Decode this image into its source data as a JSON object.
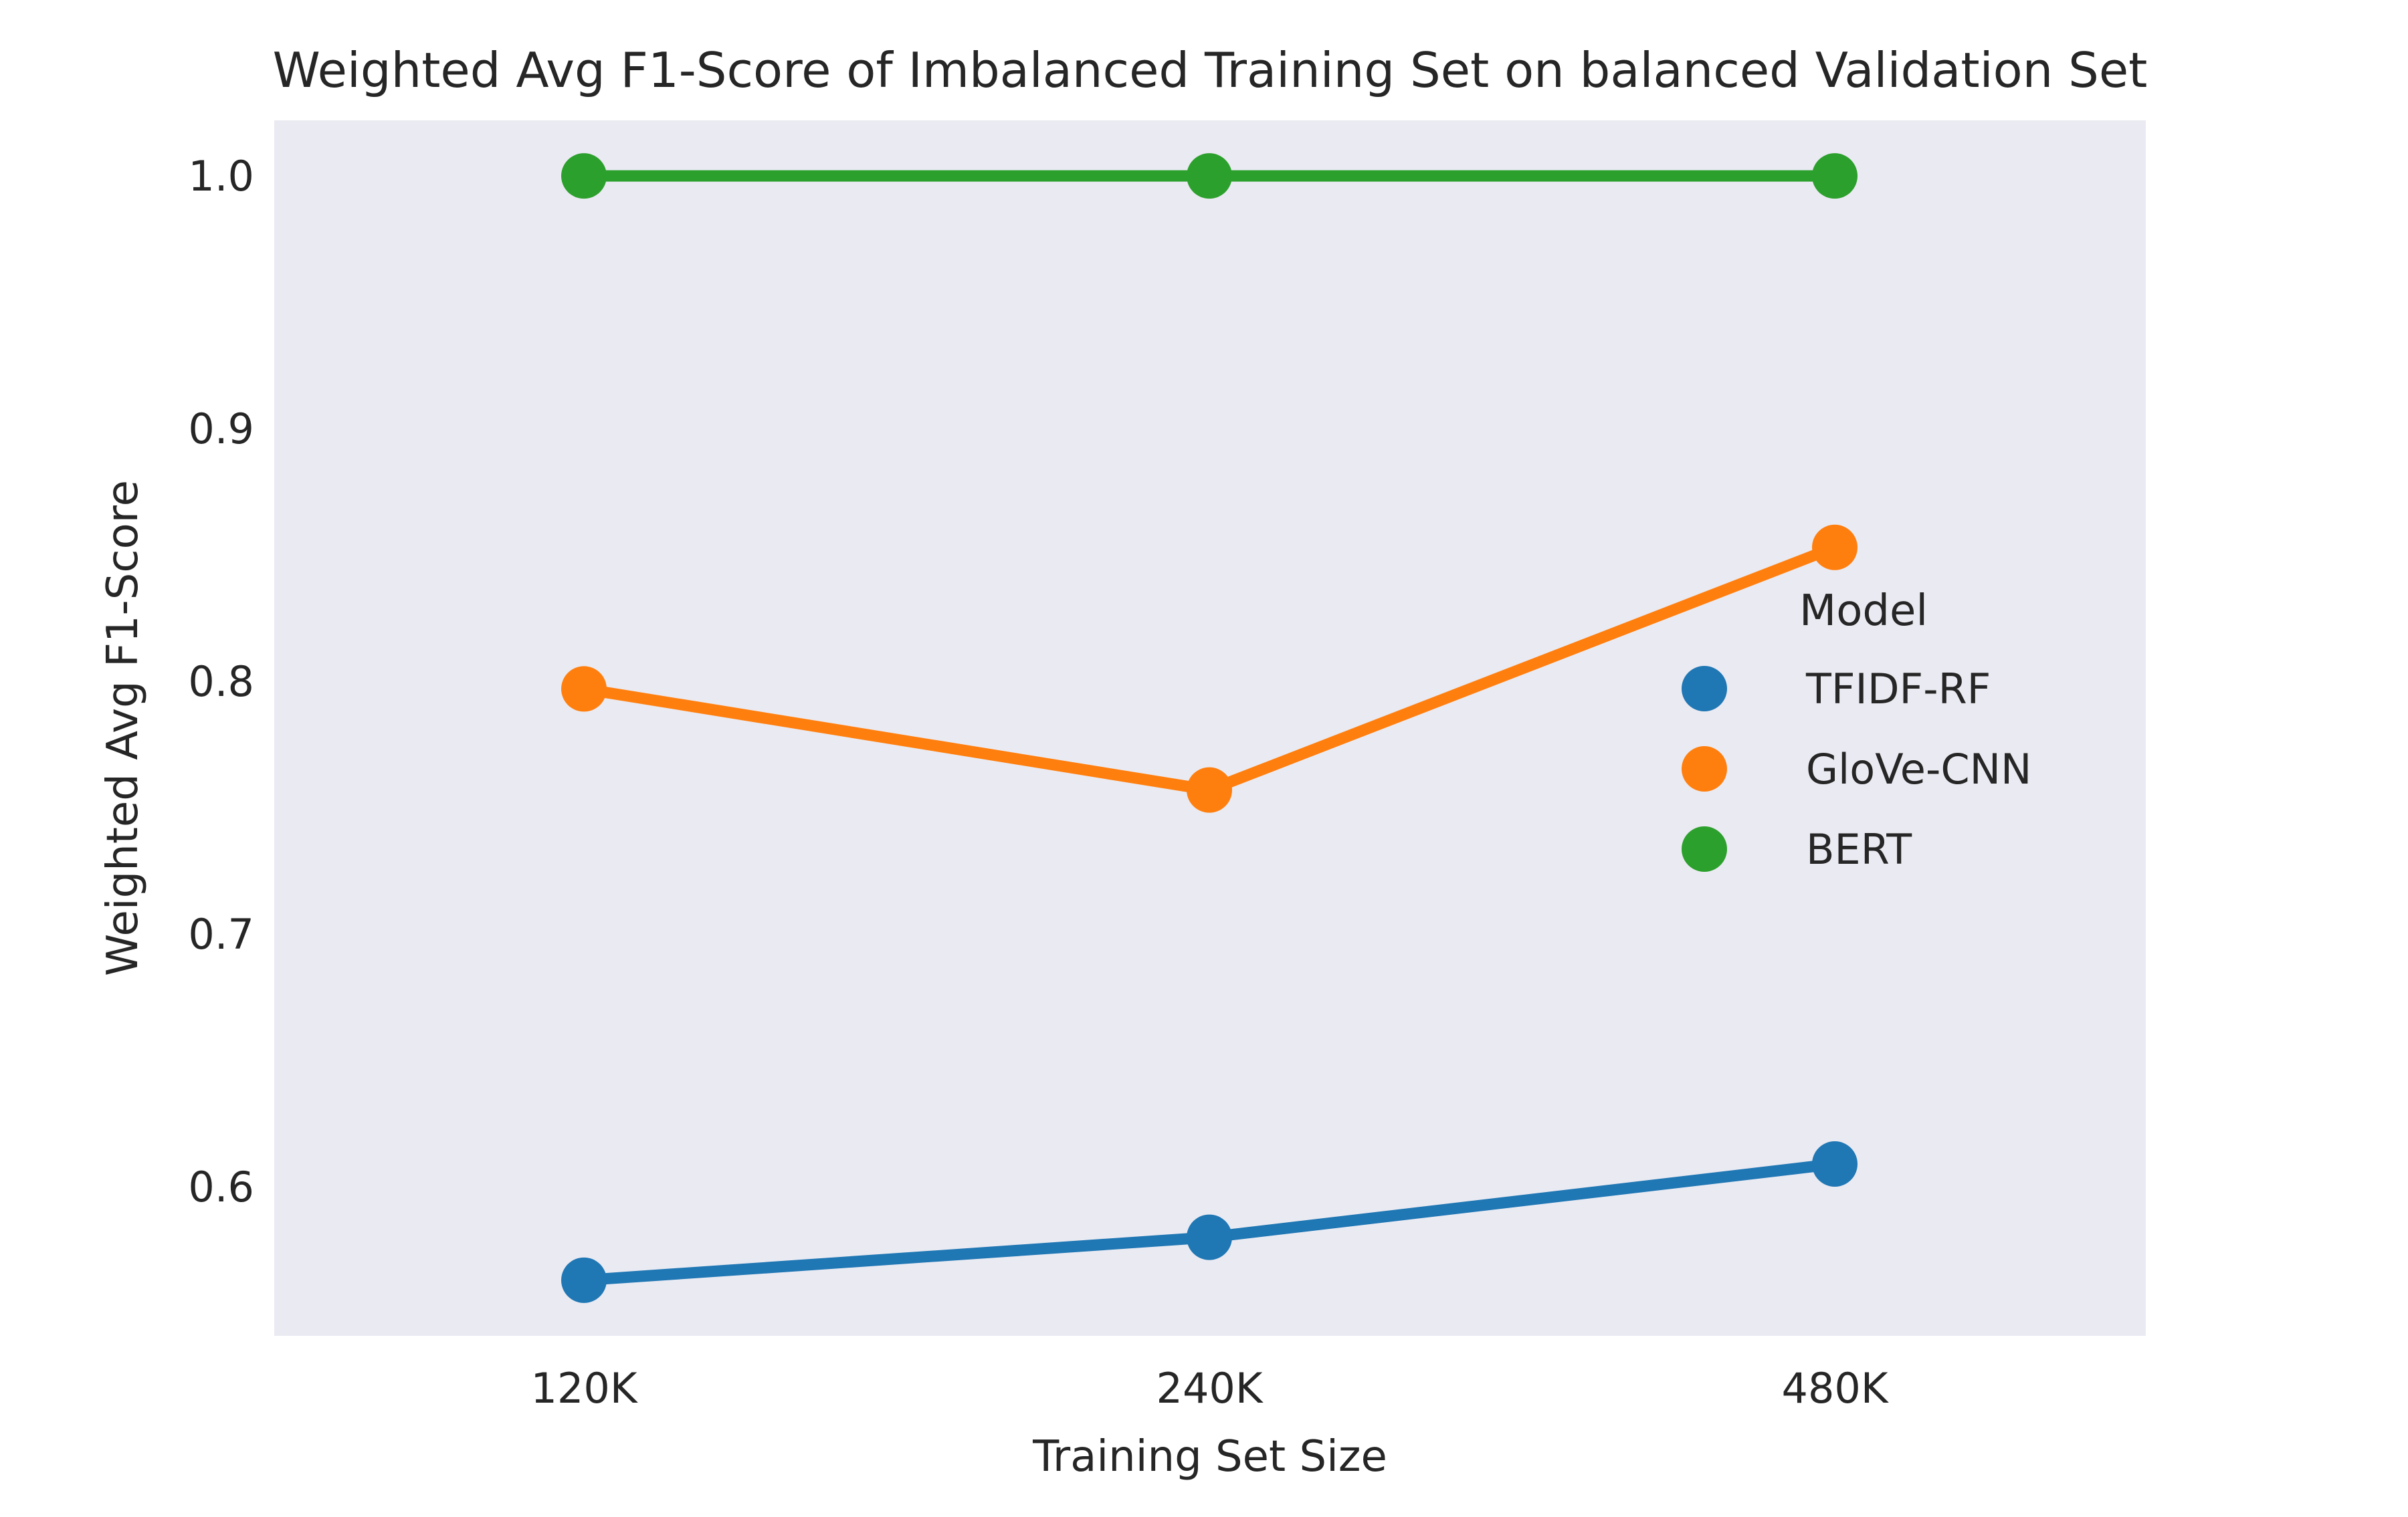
{
  "chart_data": {
    "type": "line",
    "title": "Weighted Avg F1-Score of Imbalanced Training Set on balanced Validation Set",
    "xlabel": "Training Set Size",
    "ylabel": "Weighted Avg F1-Score",
    "categories": [
      "120K",
      "240K",
      "480K"
    ],
    "ylim": [
      0.541,
      1.022
    ],
    "yticks": [
      0.6,
      0.7,
      0.8,
      0.9,
      1.0
    ],
    "ytick_labels": [
      "0.6",
      "0.7",
      "0.8",
      "0.9",
      "1.0"
    ],
    "grid": false,
    "legend": {
      "title": "Model",
      "position": "center-right"
    },
    "series": [
      {
        "name": "TFIDF-RF",
        "color": "#1f77b4",
        "values": [
          0.563,
          0.58,
          0.609
        ]
      },
      {
        "name": "GloVe-CNN",
        "color": "#ff7f0e",
        "values": [
          0.797,
          0.757,
          0.853
        ]
      },
      {
        "name": "BERT",
        "color": "#2ca02c",
        "values": [
          1.0,
          1.0,
          1.0
        ]
      }
    ]
  }
}
